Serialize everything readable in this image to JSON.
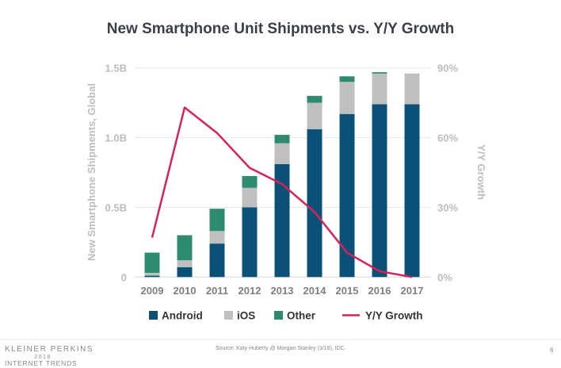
{
  "chart_data": {
    "type": "bar",
    "stacked": true,
    "title": "New Smartphone Unit Shipments vs. Y/Y Growth",
    "ylabel": "New Smartphone Shipments, Global",
    "y2label": "Y/Y Growth",
    "categories": [
      "2009",
      "2010",
      "2011",
      "2012",
      "2013",
      "2014",
      "2015",
      "2016",
      "2017"
    ],
    "ylim": [
      0,
      1.5
    ],
    "yticks": [
      "0",
      "0.5B",
      "1.0B",
      "1.5B"
    ],
    "y2lim": [
      0,
      90
    ],
    "y2ticks": [
      "0%",
      "30%",
      "60%",
      "90%"
    ],
    "grid": true,
    "legend_placement": "bottom",
    "series": [
      {
        "name": "Android",
        "type": "bar",
        "color": "#0b5077",
        "values": [
          0.01,
          0.07,
          0.24,
          0.5,
          0.81,
          1.06,
          1.17,
          1.24,
          1.24
        ]
      },
      {
        "name": "iOS",
        "type": "bar",
        "color": "#bfbfbf",
        "values": [
          0.02,
          0.05,
          0.09,
          0.14,
          0.15,
          0.19,
          0.23,
          0.22,
          0.22
        ]
      },
      {
        "name": "Other",
        "type": "bar",
        "color": "#2e8b72",
        "values": [
          0.145,
          0.18,
          0.16,
          0.085,
          0.06,
          0.05,
          0.04,
          0.01,
          0.0
        ]
      },
      {
        "name": "Y/Y Growth",
        "type": "line",
        "axis": "right",
        "color": "#d4245a",
        "values": [
          17,
          73,
          62,
          47,
          40,
          28,
          10.5,
          2.5,
          0
        ]
      }
    ]
  },
  "footer": {
    "brand_line1": "KLEINER PERKINS",
    "brand_line2": "2018",
    "brand_line3": "INTERNET TRENDS",
    "source": "Source: Katy Huberty @ Morgan Stanley (3/18), IDC.",
    "page_number": "6"
  }
}
